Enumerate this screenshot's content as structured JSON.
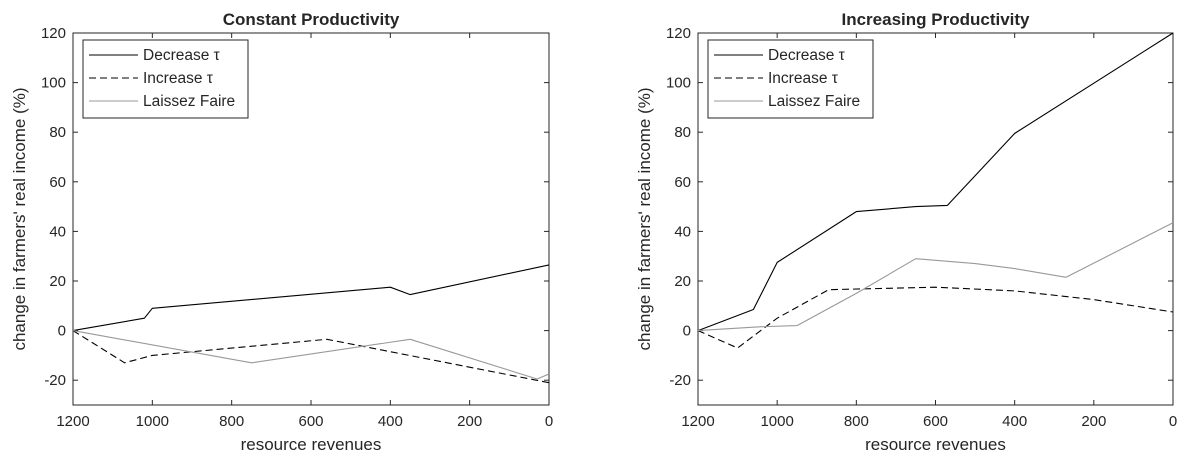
{
  "chart_data": [
    {
      "type": "line",
      "title": "Constant Productivity",
      "xlabel": "resource revenues",
      "ylabel": "change in farmers' real income (%)",
      "xlim": [
        1200,
        0
      ],
      "ylim": [
        -30,
        120
      ],
      "x_reversed": true,
      "xticks": [
        "1200",
        "1000",
        "800",
        "600",
        "400",
        "200",
        "0"
      ],
      "yticks": [
        "-20",
        "0",
        "20",
        "40",
        "60",
        "80",
        "100",
        "120"
      ],
      "legend_position": "top-left",
      "grid": false,
      "series": [
        {
          "name": "Decrease τ",
          "style": "solid",
          "color": "#000000",
          "x": [
            1200,
            1020,
            1000,
            400,
            350,
            0
          ],
          "y": [
            0,
            5,
            9,
            17.5,
            14.5,
            26.5
          ]
        },
        {
          "name": "Increase τ",
          "style": "dashed",
          "color": "#000000",
          "x": [
            1200,
            1070,
            1000,
            560,
            0
          ],
          "y": [
            0,
            -13,
            -10,
            -3.5,
            -21
          ]
        },
        {
          "name": "Laissez Faire",
          "style": "solid",
          "color": "#999999",
          "x": [
            1200,
            750,
            350,
            30,
            0
          ],
          "y": [
            0,
            -13,
            -3.5,
            -19.5,
            -17.5
          ]
        }
      ]
    },
    {
      "type": "line",
      "title": "Increasing Productivity",
      "xlabel": "resource revenues",
      "ylabel": "change in farmers' real income (%)",
      "xlim": [
        1200,
        0
      ],
      "ylim": [
        -30,
        120
      ],
      "x_reversed": true,
      "xticks": [
        "1200",
        "1000",
        "800",
        "600",
        "400",
        "200",
        "0"
      ],
      "yticks": [
        "-20",
        "0",
        "20",
        "40",
        "60",
        "80",
        "100",
        "120"
      ],
      "legend_position": "top-left",
      "grid": false,
      "series": [
        {
          "name": "Decrease τ",
          "style": "solid",
          "color": "#000000",
          "x": [
            1200,
            1060,
            1000,
            800,
            650,
            570,
            400,
            0
          ],
          "y": [
            0,
            8.5,
            27.5,
            48,
            50,
            50.5,
            79.5,
            120
          ]
        },
        {
          "name": "Increase τ",
          "style": "dashed",
          "color": "#000000",
          "x": [
            1200,
            1100,
            1000,
            870,
            600,
            400,
            200,
            0
          ],
          "y": [
            0,
            -7,
            5,
            16.5,
            17.5,
            16,
            12.5,
            7.5
          ]
        },
        {
          "name": "Laissez Faire",
          "style": "solid",
          "color": "#999999",
          "x": [
            1200,
            1050,
            950,
            800,
            650,
            500,
            400,
            270,
            0
          ],
          "y": [
            0,
            1.5,
            2,
            15,
            29,
            27,
            25,
            21.5,
            43.5
          ]
        }
      ]
    }
  ]
}
